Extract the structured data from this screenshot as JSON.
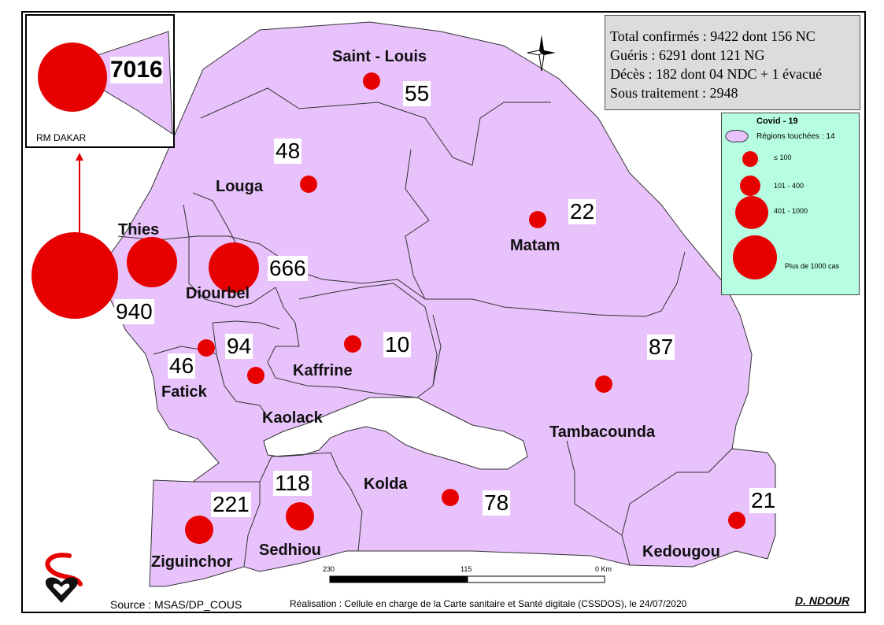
{
  "stats": {
    "confirmed": "Total confirmés : 9422  dont 156 NC",
    "recovered": "Guéris : 6291  dont 121 NG",
    "deaths": "Décès : 182 dont 04 NDC + 1 évacué",
    "treatment": "Sous traitement : 2948"
  },
  "inset": {
    "label": "RM DAKAR",
    "value": "7016"
  },
  "regions": [
    {
      "name": "Saint - Louis",
      "value": "55"
    },
    {
      "name": "Louga",
      "value": "48"
    },
    {
      "name": "Matam",
      "value": "22"
    },
    {
      "name": "Thies",
      "value": "940"
    },
    {
      "name": "Diourbel",
      "value": "666"
    },
    {
      "name": "Fatick",
      "value": "46"
    },
    {
      "name": "Kaolack",
      "value": "94"
    },
    {
      "name": "Kaffrine",
      "value": "10"
    },
    {
      "name": "Tambacounda",
      "value": "87"
    },
    {
      "name": "Kolda",
      "value": "78"
    },
    {
      "name": "Sedhiou",
      "value": "118"
    },
    {
      "name": "Ziguinchor",
      "value": "221"
    },
    {
      "name": "Kedougou",
      "value": "21"
    }
  ],
  "legend": {
    "title": "Covid - 19",
    "regions_touched": "Régions touchées : 14",
    "classes": [
      "≤ 100",
      "101 - 400",
      "401 - 1000",
      "Plus de 1000 cas"
    ]
  },
  "scale": {
    "left": "230",
    "mid": "115",
    "right": "0 Km"
  },
  "footer": {
    "source": "Source : MSAS/DP_COUS",
    "realisation": "Réalisation : Cellule en charge de la Carte sanitaire et Santé digitale (CSSDOS), le 24/07/2020",
    "author": "D. NDOUR"
  },
  "colors": {
    "region_fill": "#e8c2fb",
    "marker": "#e60000",
    "legend_bg": "#b6fde1",
    "stats_bg": "#dcdcdc"
  }
}
